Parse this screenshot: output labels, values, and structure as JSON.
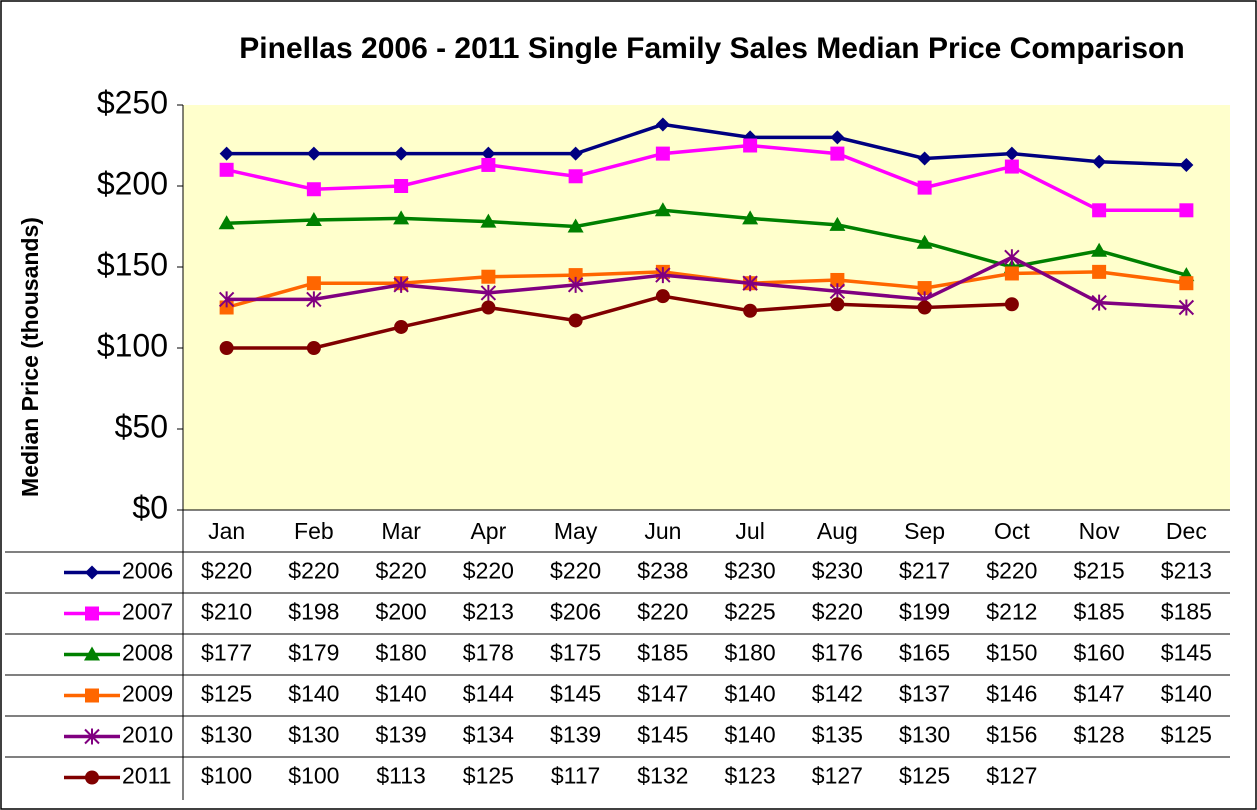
{
  "chart_data": {
    "type": "line",
    "title": "Pinellas 2006 - 2011 Single Family Sales Median Price Comparison",
    "y_label": "Median Price (thousands)",
    "categories": [
      "Jan",
      "Feb",
      "Mar",
      "Apr",
      "May",
      "Jun",
      "Jul",
      "Aug",
      "Sep",
      "Oct",
      "Nov",
      "Dec"
    ],
    "ylim": [
      0,
      250
    ],
    "yticks": [
      {
        "value": 0,
        "label": "$0"
      },
      {
        "value": 50,
        "label": "$50"
      },
      {
        "value": 100,
        "label": "$100"
      },
      {
        "value": 150,
        "label": "$150"
      },
      {
        "value": 200,
        "label": "$200"
      },
      {
        "value": 250,
        "label": "$250"
      }
    ],
    "grid": false,
    "series": [
      {
        "name": "2006",
        "color": "#000080",
        "marker": "diamond",
        "values": [
          220,
          220,
          220,
          220,
          220,
          238,
          230,
          230,
          217,
          220,
          215,
          213
        ],
        "value_labels": [
          "$220",
          "$220",
          "$220",
          "$220",
          "$220",
          "$238",
          "$230",
          "$230",
          "$217",
          "$220",
          "$215",
          "$213"
        ]
      },
      {
        "name": "2007",
        "color": "#ff00ff",
        "marker": "square",
        "values": [
          210,
          198,
          200,
          213,
          206,
          220,
          225,
          220,
          199,
          212,
          185,
          185
        ],
        "value_labels": [
          "$210",
          "$198",
          "$200",
          "$213",
          "$206",
          "$220",
          "$225",
          "$220",
          "$199",
          "$212",
          "$185",
          "$185"
        ]
      },
      {
        "name": "2008",
        "color": "#008000",
        "marker": "triangle",
        "values": [
          177,
          179,
          180,
          178,
          175,
          185,
          180,
          176,
          165,
          150,
          160,
          145
        ],
        "value_labels": [
          "$177",
          "$179",
          "$180",
          "$178",
          "$175",
          "$185",
          "$180",
          "$176",
          "$165",
          "$150",
          "$160",
          "$145"
        ]
      },
      {
        "name": "2009",
        "color": "#ff6600",
        "marker": "square",
        "values": [
          125,
          140,
          140,
          144,
          145,
          147,
          140,
          142,
          137,
          146,
          147,
          140
        ],
        "value_labels": [
          "$125",
          "$140",
          "$140",
          "$144",
          "$145",
          "$147",
          "$140",
          "$142",
          "$137",
          "$146",
          "$147",
          "$140"
        ]
      },
      {
        "name": "2010",
        "color": "#800080",
        "marker": "star",
        "values": [
          130,
          130,
          139,
          134,
          139,
          145,
          140,
          135,
          130,
          156,
          128,
          125
        ],
        "value_labels": [
          "$130",
          "$130",
          "$139",
          "$134",
          "$139",
          "$145",
          "$140",
          "$135",
          "$130",
          "$156",
          "$128",
          "$125"
        ]
      },
      {
        "name": "2011",
        "color": "#800000",
        "marker": "circle",
        "values": [
          100,
          100,
          113,
          125,
          117,
          132,
          123,
          127,
          125,
          127,
          null,
          null
        ],
        "value_labels": [
          "$100",
          "$100",
          "$113",
          "$125",
          "$117",
          "$132",
          "$123",
          "$127",
          "$125",
          "$127",
          null,
          null
        ]
      }
    ]
  }
}
